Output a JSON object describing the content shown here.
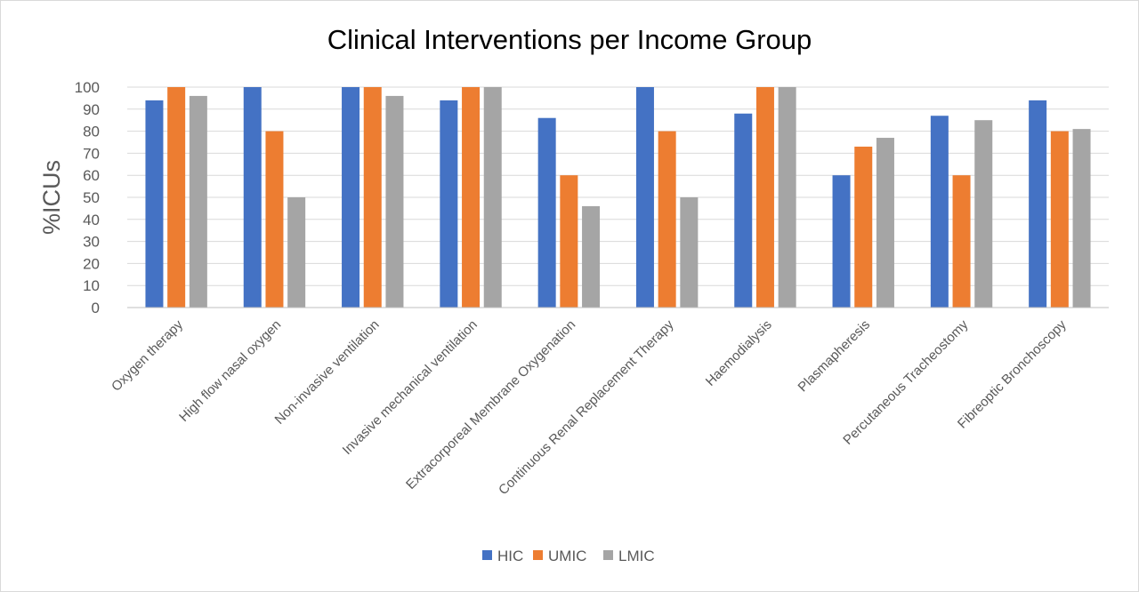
{
  "chart_data": {
    "type": "bar",
    "title": "Clinical Interventions per Income Group",
    "ylabel": "%ICUs",
    "xlabel": "",
    "ylim": [
      0,
      100
    ],
    "yticks": [
      0,
      10,
      20,
      30,
      40,
      50,
      60,
      70,
      80,
      90,
      100
    ],
    "grid": true,
    "legend_position": "bottom",
    "categories": [
      "Oxygen therapy",
      "High flow nasal oxygen",
      "Non-invasive ventilation",
      "Invasive mechanical ventilation",
      "Extracorporeal Membrane Oxygenation",
      "Continuous Renal Replacement Therapy",
      "Haemodialysis",
      "Plasmapheresis",
      "Percutaneous Tracheostomy",
      "Fibreoptic Bronchoscopy"
    ],
    "series": [
      {
        "name": "HIC",
        "color": "#4472C4",
        "values": [
          94,
          100,
          100,
          94,
          86,
          100,
          88,
          60,
          87,
          94
        ]
      },
      {
        "name": "UMIC",
        "color": "#ED7D31",
        "values": [
          100,
          80,
          100,
          100,
          60,
          80,
          100,
          73,
          60,
          80
        ]
      },
      {
        "name": "LMIC",
        "color": "#A5A5A5",
        "values": [
          96,
          50,
          96,
          100,
          46,
          50,
          100,
          77,
          85,
          81
        ]
      }
    ]
  }
}
